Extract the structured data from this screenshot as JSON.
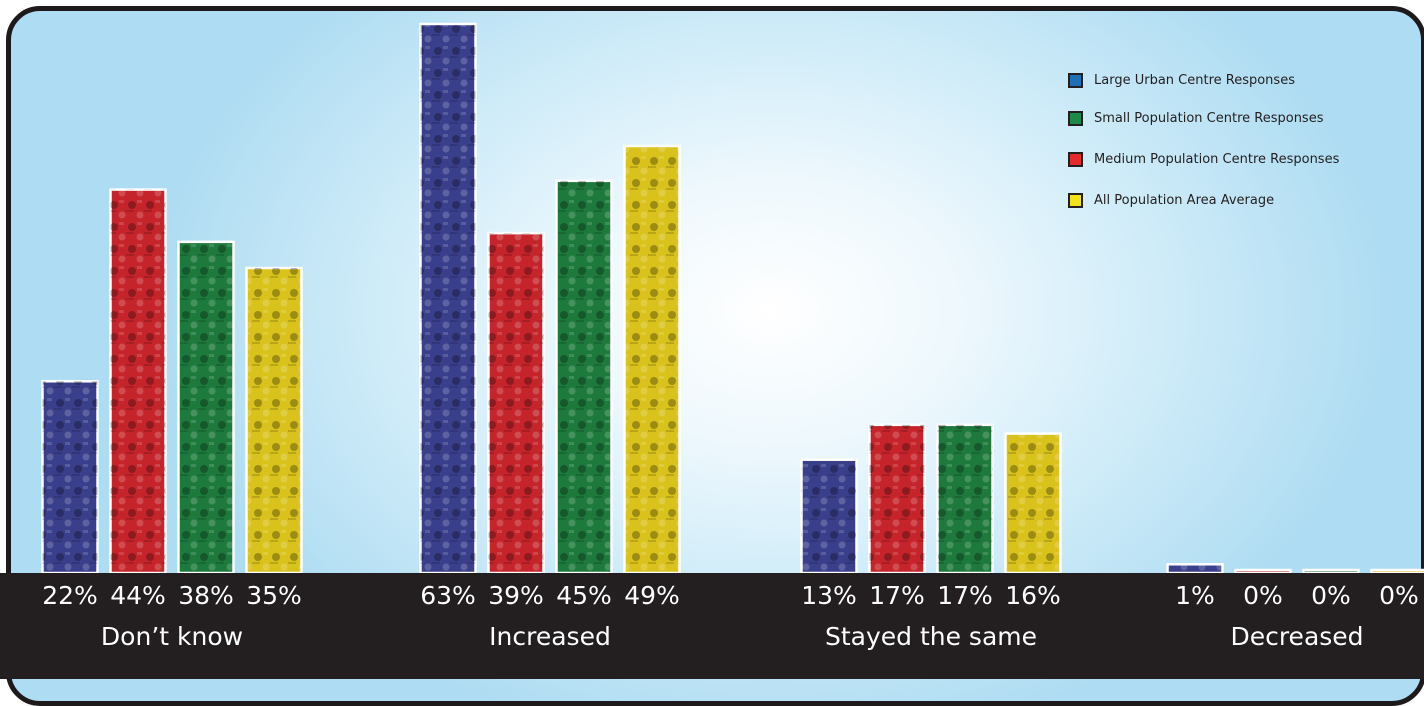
{
  "chart_data": {
    "type": "bar",
    "categories": [
      "Don’t know",
      "Increased",
      "Stayed the same",
      "Decreased"
    ],
    "series": [
      {
        "name": "Large Urban Centre Responses",
        "color": "#3a3f8c",
        "values": [
          22,
          63,
          13,
          1
        ],
        "labels": [
          "22%",
          "63%",
          "13%",
          "1%"
        ]
      },
      {
        "name": "Medium Population Centre Responses",
        "color": "#c4242a",
        "values": [
          44,
          39,
          17,
          0
        ],
        "labels": [
          "44%",
          "39%",
          "17%",
          "0%"
        ]
      },
      {
        "name": "Small Population Centre Responses",
        "color": "#1d7a3c",
        "values": [
          38,
          45,
          17,
          0
        ],
        "labels": [
          "38%",
          "45%",
          "17%",
          "0%"
        ]
      },
      {
        "name": "All Population Area Average",
        "color": "#d9c21c",
        "values": [
          35,
          49,
          16,
          0
        ],
        "labels": [
          "35%",
          "49%",
          "16%",
          "0%"
        ]
      }
    ],
    "legend": {
      "position": "top-right",
      "items": [
        {
          "label": "Large Urban Centre Responses",
          "color": "#1f6fb5"
        },
        {
          "label": "Small Population Centre Responses",
          "color": "#1d8a4a"
        },
        {
          "label": "Medium Population Centre Responses",
          "color": "#e32b2b"
        },
        {
          "label": "All Population Area Average",
          "color": "#f2e21c"
        }
      ]
    },
    "ylim": [
      0,
      63
    ],
    "grid": false
  }
}
